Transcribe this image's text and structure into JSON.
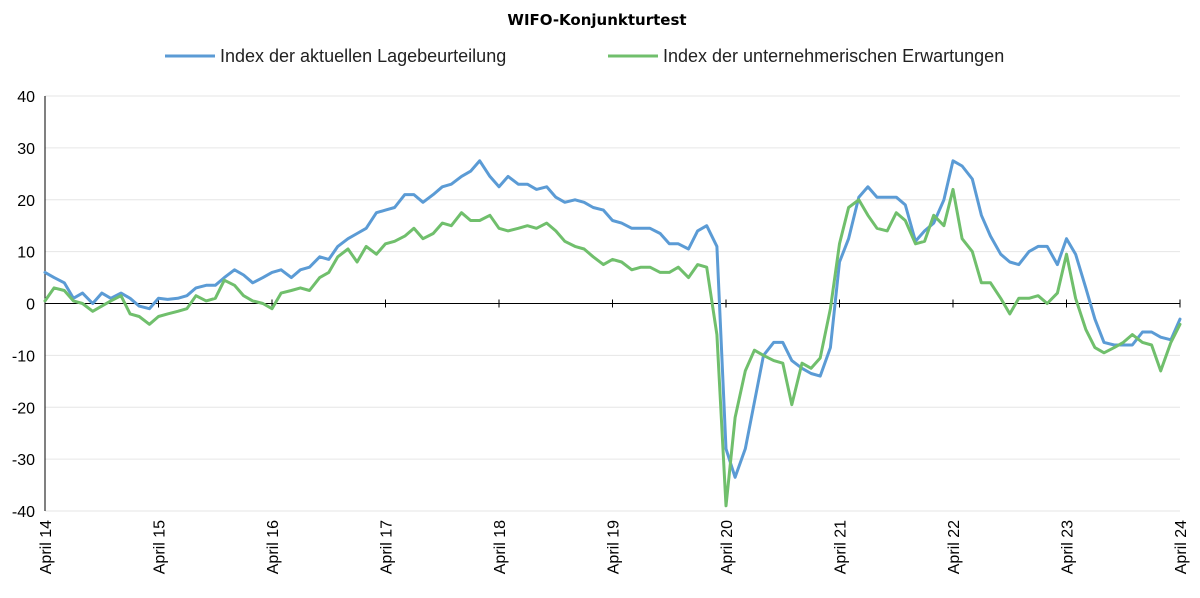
{
  "chart_data": {
    "type": "line",
    "title": "WIFO-Konjunkturtest",
    "ylim": [
      -40,
      40
    ],
    "yticks": [
      -40,
      -30,
      -20,
      -10,
      0,
      10,
      20,
      30,
      40
    ],
    "xlim": [
      2014.25,
      2024.25
    ],
    "x_tick_labels": [
      "April 14",
      "April 15",
      "April 16",
      "April 17",
      "April 18",
      "April 19",
      "April 20",
      "April 21",
      "April 22",
      "April 23",
      "April 24"
    ],
    "legend_position": "top",
    "grid": true,
    "series": [
      {
        "name": "Index der aktuellen Lagebeurteilung",
        "color": "#5b9bd5",
        "points": [
          [
            2014.25,
            6
          ],
          [
            2014.33,
            5
          ],
          [
            2014.42,
            4
          ],
          [
            2014.5,
            1
          ],
          [
            2014.58,
            2
          ],
          [
            2014.67,
            0
          ],
          [
            2014.75,
            2
          ],
          [
            2014.83,
            1
          ],
          [
            2014.92,
            2
          ],
          [
            2015.0,
            1
          ],
          [
            2015.08,
            -0.5
          ],
          [
            2015.17,
            -1
          ],
          [
            2015.25,
            1
          ],
          [
            2015.33,
            0.8
          ],
          [
            2015.42,
            1
          ],
          [
            2015.5,
            1.5
          ],
          [
            2015.58,
            3
          ],
          [
            2015.67,
            3.5
          ],
          [
            2015.75,
            3.5
          ],
          [
            2015.83,
            5
          ],
          [
            2015.92,
            6.5
          ],
          [
            2016.0,
            5.5
          ],
          [
            2016.08,
            4
          ],
          [
            2016.17,
            5
          ],
          [
            2016.25,
            6
          ],
          [
            2016.33,
            6.5
          ],
          [
            2016.42,
            5
          ],
          [
            2016.5,
            6.5
          ],
          [
            2016.58,
            7
          ],
          [
            2016.67,
            9
          ],
          [
            2016.75,
            8.5
          ],
          [
            2016.83,
            11
          ],
          [
            2016.92,
            12.5
          ],
          [
            2017.0,
            13.5
          ],
          [
            2017.08,
            14.5
          ],
          [
            2017.17,
            17.5
          ],
          [
            2017.25,
            18
          ],
          [
            2017.33,
            18.5
          ],
          [
            2017.42,
            21
          ],
          [
            2017.5,
            21
          ],
          [
            2017.58,
            19.5
          ],
          [
            2017.67,
            21
          ],
          [
            2017.75,
            22.5
          ],
          [
            2017.83,
            23
          ],
          [
            2017.92,
            24.5
          ],
          [
            2018.0,
            25.5
          ],
          [
            2018.08,
            27.5
          ],
          [
            2018.17,
            24.5
          ],
          [
            2018.25,
            22.5
          ],
          [
            2018.33,
            24.5
          ],
          [
            2018.42,
            23
          ],
          [
            2018.5,
            23
          ],
          [
            2018.58,
            22
          ],
          [
            2018.67,
            22.5
          ],
          [
            2018.75,
            20.5
          ],
          [
            2018.83,
            19.5
          ],
          [
            2018.92,
            20
          ],
          [
            2019.0,
            19.5
          ],
          [
            2019.08,
            18.5
          ],
          [
            2019.17,
            18
          ],
          [
            2019.25,
            16
          ],
          [
            2019.33,
            15.5
          ],
          [
            2019.42,
            14.5
          ],
          [
            2019.5,
            14.5
          ],
          [
            2019.58,
            14.5
          ],
          [
            2019.67,
            13.5
          ],
          [
            2019.75,
            11.5
          ],
          [
            2019.83,
            11.5
          ],
          [
            2019.92,
            10.5
          ],
          [
            2020.0,
            14
          ],
          [
            2020.08,
            15
          ],
          [
            2020.17,
            11
          ],
          [
            2020.25,
            -28
          ],
          [
            2020.33,
            -33.5
          ],
          [
            2020.42,
            -28
          ],
          [
            2020.5,
            -19
          ],
          [
            2020.58,
            -10
          ],
          [
            2020.67,
            -7.5
          ],
          [
            2020.75,
            -7.5
          ],
          [
            2020.83,
            -11
          ],
          [
            2020.92,
            -12.5
          ],
          [
            2021.0,
            -13.5
          ],
          [
            2021.08,
            -14
          ],
          [
            2021.17,
            -8.5
          ],
          [
            2021.25,
            8
          ],
          [
            2021.33,
            12.5
          ],
          [
            2021.42,
            20.5
          ],
          [
            2021.5,
            22.5
          ],
          [
            2021.58,
            20.5
          ],
          [
            2021.67,
            20.5
          ],
          [
            2021.75,
            20.5
          ],
          [
            2021.83,
            19
          ],
          [
            2021.92,
            12
          ],
          [
            2022.0,
            14
          ],
          [
            2022.08,
            15.5
          ],
          [
            2022.17,
            20
          ],
          [
            2022.25,
            27.5
          ],
          [
            2022.33,
            26.5
          ],
          [
            2022.42,
            24
          ],
          [
            2022.5,
            17
          ],
          [
            2022.58,
            13
          ],
          [
            2022.67,
            9.5
          ],
          [
            2022.75,
            8
          ],
          [
            2022.83,
            7.5
          ],
          [
            2022.92,
            10
          ],
          [
            2023.0,
            11
          ],
          [
            2023.08,
            11
          ],
          [
            2023.17,
            7.5
          ],
          [
            2023.25,
            12.5
          ],
          [
            2023.33,
            9.5
          ],
          [
            2023.42,
            3
          ],
          [
            2023.5,
            -3
          ],
          [
            2023.58,
            -7.5
          ],
          [
            2023.67,
            -8
          ],
          [
            2023.75,
            -8
          ],
          [
            2023.83,
            -8
          ],
          [
            2023.92,
            -5.5
          ],
          [
            2024.0,
            -5.5
          ],
          [
            2024.08,
            -6.5
          ],
          [
            2024.17,
            -7
          ],
          [
            2024.25,
            -3
          ]
        ]
      },
      {
        "name": "Index der unternehmerischen Erwartungen",
        "color": "#70bf6c",
        "points": [
          [
            2014.25,
            0.5
          ],
          [
            2014.33,
            3
          ],
          [
            2014.42,
            2.5
          ],
          [
            2014.5,
            0.5
          ],
          [
            2014.58,
            0
          ],
          [
            2014.67,
            -1.5
          ],
          [
            2014.75,
            -0.5
          ],
          [
            2014.83,
            0.5
          ],
          [
            2014.92,
            1.5
          ],
          [
            2015.0,
            -2
          ],
          [
            2015.08,
            -2.5
          ],
          [
            2015.17,
            -4
          ],
          [
            2015.25,
            -2.5
          ],
          [
            2015.33,
            -2
          ],
          [
            2015.42,
            -1.5
          ],
          [
            2015.5,
            -1
          ],
          [
            2015.58,
            1.5
          ],
          [
            2015.67,
            0.5
          ],
          [
            2015.75,
            1
          ],
          [
            2015.83,
            4.5
          ],
          [
            2015.92,
            3.5
          ],
          [
            2016.0,
            1.5
          ],
          [
            2016.08,
            0.5
          ],
          [
            2016.17,
            0
          ],
          [
            2016.25,
            -1
          ],
          [
            2016.33,
            2
          ],
          [
            2016.42,
            2.5
          ],
          [
            2016.5,
            3
          ],
          [
            2016.58,
            2.5
          ],
          [
            2016.67,
            5
          ],
          [
            2016.75,
            6
          ],
          [
            2016.83,
            9
          ],
          [
            2016.92,
            10.5
          ],
          [
            2017.0,
            8
          ],
          [
            2017.08,
            11
          ],
          [
            2017.17,
            9.5
          ],
          [
            2017.25,
            11.5
          ],
          [
            2017.33,
            12
          ],
          [
            2017.42,
            13
          ],
          [
            2017.5,
            14.5
          ],
          [
            2017.58,
            12.5
          ],
          [
            2017.67,
            13.5
          ],
          [
            2017.75,
            15.5
          ],
          [
            2017.83,
            15
          ],
          [
            2017.92,
            17.5
          ],
          [
            2018.0,
            16
          ],
          [
            2018.08,
            16
          ],
          [
            2018.17,
            17
          ],
          [
            2018.25,
            14.5
          ],
          [
            2018.33,
            14
          ],
          [
            2018.42,
            14.5
          ],
          [
            2018.5,
            15
          ],
          [
            2018.58,
            14.5
          ],
          [
            2018.67,
            15.5
          ],
          [
            2018.75,
            14
          ],
          [
            2018.83,
            12
          ],
          [
            2018.92,
            11
          ],
          [
            2019.0,
            10.5
          ],
          [
            2019.08,
            9
          ],
          [
            2019.17,
            7.5
          ],
          [
            2019.25,
            8.5
          ],
          [
            2019.33,
            8
          ],
          [
            2019.42,
            6.5
          ],
          [
            2019.5,
            7
          ],
          [
            2019.58,
            7
          ],
          [
            2019.67,
            6
          ],
          [
            2019.75,
            6
          ],
          [
            2019.83,
            7
          ],
          [
            2019.92,
            5
          ],
          [
            2020.0,
            7.5
          ],
          [
            2020.08,
            7
          ],
          [
            2020.17,
            -6
          ],
          [
            2020.25,
            -39
          ],
          [
            2020.33,
            -22
          ],
          [
            2020.42,
            -13
          ],
          [
            2020.5,
            -9
          ],
          [
            2020.58,
            -10
          ],
          [
            2020.67,
            -11
          ],
          [
            2020.75,
            -11.5
          ],
          [
            2020.83,
            -19.5
          ],
          [
            2020.92,
            -11.5
          ],
          [
            2021.0,
            -12.5
          ],
          [
            2021.08,
            -10.5
          ],
          [
            2021.17,
            -1
          ],
          [
            2021.25,
            11.5
          ],
          [
            2021.33,
            18.5
          ],
          [
            2021.42,
            20
          ],
          [
            2021.5,
            17
          ],
          [
            2021.58,
            14.5
          ],
          [
            2021.67,
            14
          ],
          [
            2021.75,
            17.5
          ],
          [
            2021.83,
            16
          ],
          [
            2021.92,
            11.5
          ],
          [
            2022.0,
            12
          ],
          [
            2022.08,
            17
          ],
          [
            2022.17,
            15
          ],
          [
            2022.25,
            22
          ],
          [
            2022.33,
            12.5
          ],
          [
            2022.42,
            10
          ],
          [
            2022.5,
            4
          ],
          [
            2022.58,
            4
          ],
          [
            2022.67,
            1
          ],
          [
            2022.75,
            -2
          ],
          [
            2022.83,
            1
          ],
          [
            2022.92,
            1
          ],
          [
            2023.0,
            1.5
          ],
          [
            2023.08,
            0
          ],
          [
            2023.17,
            2
          ],
          [
            2023.25,
            9.5
          ],
          [
            2023.33,
            1
          ],
          [
            2023.42,
            -5
          ],
          [
            2023.5,
            -8.5
          ],
          [
            2023.58,
            -9.5
          ],
          [
            2023.67,
            -8.5
          ],
          [
            2023.75,
            -7.5
          ],
          [
            2023.83,
            -6
          ],
          [
            2023.92,
            -7.5
          ],
          [
            2024.0,
            -8
          ],
          [
            2024.08,
            -13
          ],
          [
            2024.17,
            -7.5
          ],
          [
            2024.25,
            -4
          ]
        ]
      }
    ]
  }
}
